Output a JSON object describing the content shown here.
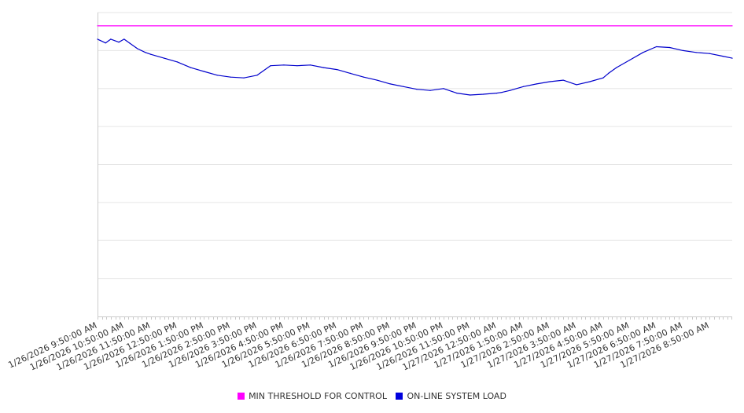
{
  "chart_data": {
    "type": "line",
    "title": "",
    "xlabel": "",
    "ylabel": "",
    "y_ticks_labeled": false,
    "grid": "horizontal",
    "legend_position": "bottom",
    "x_tick_labels": [
      "1/26/2026 9:50:00 AM",
      "1/26/2026 10:50:00 AM",
      "1/26/2026 11:50:00 AM",
      "1/26/2026 12:50:00 PM",
      "1/26/2026 1:50:00 PM",
      "1/26/2026 2:50:00 PM",
      "1/26/2026 3:50:00 PM",
      "1/26/2026 4:50:00 PM",
      "1/26/2026 5:50:00 PM",
      "1/26/2026 6:50:00 PM",
      "1/26/2026 7:50:00 PM",
      "1/26/2026 8:50:00 PM",
      "1/26/2026 9:50:00 PM",
      "1/26/2026 10:50:00 PM",
      "1/26/2026 11:50:00 PM",
      "1/27/2026 12:50:00 AM",
      "1/27/2026 1:50:00 AM",
      "1/27/2026 2:50:00 AM",
      "1/27/2026 3:50:00 AM",
      "1/27/2026 4:50:00 AM",
      "1/27/2026 5:50:00 AM",
      "1/27/2026 6:50:00 AM",
      "1/27/2026 7:50:00 AM",
      "1/27/2026 8:50:00 AM"
    ],
    "ylim": [
      0,
      8
    ],
    "series": [
      {
        "name": "MIN THRESHOLD FOR CONTROL",
        "color": "#ff00ff",
        "x_hours_from_start": [
          0,
          23.85
        ],
        "values": [
          7.65,
          7.65
        ]
      },
      {
        "name": "ON-LINE SYSTEM LOAD",
        "color": "#0000cc",
        "x_hours_from_start": [
          0,
          0.3,
          0.5,
          0.8,
          1.0,
          1.2,
          1.5,
          1.8,
          2.0,
          2.5,
          3.0,
          3.5,
          4.0,
          4.5,
          5.0,
          5.5,
          6.0,
          6.5,
          7.0,
          7.5,
          8.0,
          8.5,
          9.0,
          9.5,
          10.0,
          10.5,
          11.0,
          11.5,
          12.0,
          12.5,
          13.0,
          13.5,
          14.0,
          14.5,
          15.0,
          15.2,
          15.5,
          16.0,
          16.5,
          17.0,
          17.5,
          18.0,
          18.5,
          19.0,
          19.2,
          19.5,
          20.0,
          20.5,
          21.0,
          21.5,
          22.0,
          22.5,
          23.0,
          23.5,
          23.85
        ],
        "values": [
          7.3,
          7.2,
          7.3,
          7.22,
          7.3,
          7.2,
          7.05,
          6.95,
          6.9,
          6.8,
          6.7,
          6.55,
          6.45,
          6.35,
          6.3,
          6.28,
          6.35,
          6.6,
          6.62,
          6.6,
          6.62,
          6.55,
          6.5,
          6.4,
          6.3,
          6.22,
          6.12,
          6.05,
          5.98,
          5.95,
          6.0,
          5.88,
          5.83,
          5.85,
          5.88,
          5.9,
          5.95,
          6.05,
          6.12,
          6.18,
          6.22,
          6.1,
          6.18,
          6.28,
          6.4,
          6.55,
          6.75,
          6.95,
          7.1,
          7.08,
          7.0,
          6.95,
          6.92,
          6.85,
          6.8
        ]
      }
    ]
  }
}
